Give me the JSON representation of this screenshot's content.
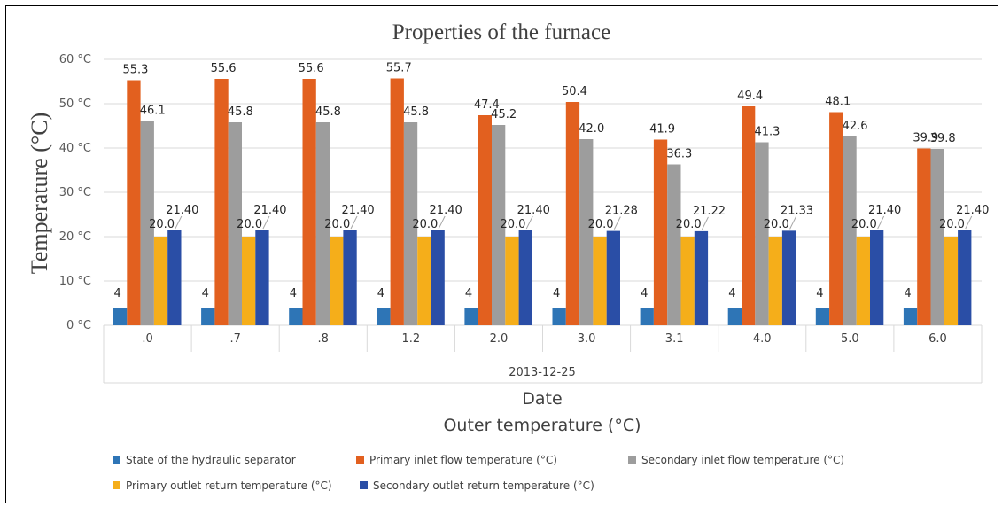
{
  "chart_data": {
    "type": "bar",
    "title": "Properties of the furnace",
    "ylabel": "Temperature (°C)",
    "xlabel": "Date",
    "xlabel2": "Outer temperature (°C)",
    "group_label": "2013-12-25",
    "ylim": [
      0,
      60
    ],
    "yticks": [
      0,
      10,
      20,
      30,
      40,
      50,
      60
    ],
    "ytick_labels": [
      "0 °C",
      "10 °C",
      "20 °C",
      "30 °C",
      "40 °C",
      "50 °C",
      "60 °C"
    ],
    "categories": [
      ".0",
      ".7",
      ".8",
      "1.2",
      "2.0",
      "3.0",
      "3.1",
      "4.0",
      "5.0",
      "6.0"
    ],
    "grid": true,
    "legend_position": "bottom",
    "series": [
      {
        "name": "State of the hydraulic separator",
        "color": "#2e75b6",
        "values": [
          4,
          4,
          4,
          4,
          4,
          4,
          4,
          4,
          4,
          4
        ],
        "labels": [
          "4",
          "4",
          "4",
          "4",
          "4",
          "4",
          "4",
          "4",
          "4",
          "4"
        ]
      },
      {
        "name": "Primary inlet flow temperature (°C)",
        "color": "#e2601f",
        "values": [
          55.3,
          55.6,
          55.6,
          55.7,
          47.4,
          50.4,
          41.9,
          49.4,
          48.1,
          39.9
        ],
        "labels": [
          "55.3",
          "55.6",
          "55.6",
          "55.7",
          "47.4",
          "50.4",
          "41.9",
          "49.4",
          "48.1",
          "39.9"
        ]
      },
      {
        "name": "Secondary inlet flow temperature (°C)",
        "color": "#9d9d9d",
        "values": [
          46.1,
          45.8,
          45.8,
          45.8,
          45.2,
          42.0,
          36.3,
          41.3,
          42.6,
          39.8
        ],
        "labels": [
          "46.1",
          "45.8",
          "45.8",
          "45.8",
          "45.2",
          "42.0",
          "36.3",
          "41.3",
          "42.6",
          "39.8"
        ]
      },
      {
        "name": "Primary outlet return temperature (°C)",
        "color": "#f5ae1a",
        "values": [
          20.0,
          20.0,
          20.0,
          20.0,
          20.0,
          20.0,
          20.0,
          20.0,
          20.0,
          20.0
        ],
        "labels": [
          "20.0",
          "20.0",
          "20.0",
          "20.0",
          "20.0",
          "20.0",
          "20.0",
          "20.0",
          "20.0",
          "20.0"
        ]
      },
      {
        "name": "Secondary outlet return temperature (°C)",
        "color": "#2a4ea6",
        "values": [
          21.4,
          21.4,
          21.4,
          21.4,
          21.4,
          21.28,
          21.22,
          21.33,
          21.4,
          21.4
        ],
        "labels": [
          "21.40",
          "21.40",
          "21.40",
          "21.40",
          "21.40",
          "21.28",
          "21.22",
          "21.33",
          "21.40",
          "21.40"
        ]
      }
    ]
  }
}
